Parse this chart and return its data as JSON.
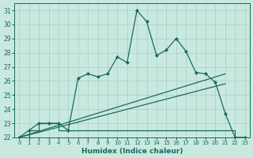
{
  "xlabel": "Humidex (Indice chaleur)",
  "xlim_min": -0.5,
  "xlim_max": 23.5,
  "ylim_min": 22,
  "ylim_max": 31.5,
  "yticks": [
    22,
    23,
    24,
    25,
    26,
    27,
    28,
    29,
    30,
    31
  ],
  "xticks": [
    0,
    1,
    2,
    3,
    4,
    5,
    6,
    7,
    8,
    9,
    10,
    11,
    12,
    13,
    14,
    15,
    16,
    17,
    18,
    19,
    20,
    21,
    22,
    23
  ],
  "bg_color": "#c8e8e0",
  "line_color": "#1a6b5a",
  "main_x": [
    0,
    1,
    2,
    3,
    4,
    5,
    6,
    7,
    8,
    9,
    10,
    11,
    12,
    13,
    14,
    15,
    16,
    17,
    18,
    19,
    20,
    21,
    22,
    23
  ],
  "main_y": [
    22,
    22.5,
    23,
    23,
    23,
    22.5,
    26.2,
    26.5,
    26.3,
    26.5,
    27.7,
    27.3,
    31,
    30.2,
    27.8,
    28.2,
    29,
    28.1,
    26.6,
    26.5,
    25.9,
    23.7,
    22,
    22
  ],
  "line1_x": [
    0,
    21
  ],
  "line1_y": [
    22,
    26.5
  ],
  "line2_x": [
    0,
    21
  ],
  "line2_y": [
    22,
    25.8
  ],
  "step_x": [
    0,
    1,
    2,
    3,
    4,
    5,
    6,
    7,
    8,
    9,
    10,
    11,
    12,
    13,
    14,
    15,
    16,
    17,
    18,
    19,
    20,
    21,
    22,
    23
  ],
  "step_y": [
    22,
    22.5,
    23,
    23,
    22.5,
    22.5,
    22.5,
    22.5,
    22.5,
    22.5,
    22.5,
    22.5,
    22.5,
    22.5,
    22.5,
    22.5,
    22.5,
    22.5,
    22.5,
    22.5,
    22.5,
    22.5,
    22,
    22
  ]
}
